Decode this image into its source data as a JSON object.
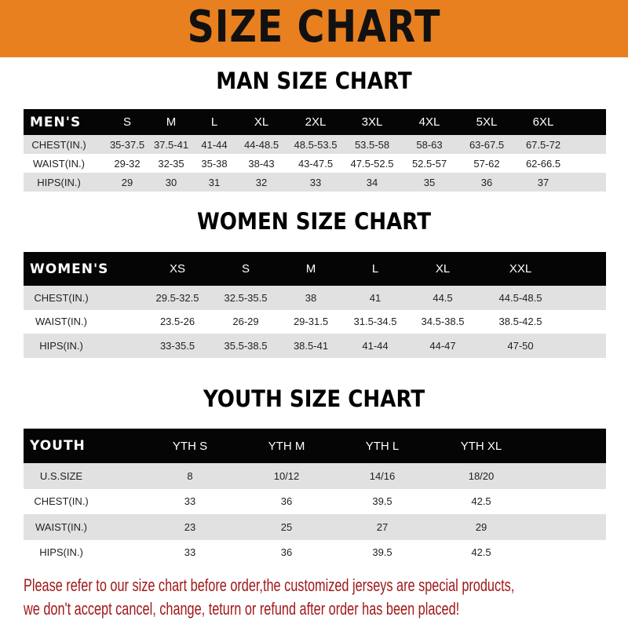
{
  "banner": {
    "title": "SIZE CHART",
    "color": "#e8801f"
  },
  "tables": [
    {
      "key": "men",
      "title": "MAN SIZE CHART",
      "header": [
        "MEN'S",
        "S",
        "M",
        "L",
        "XL",
        "2XL",
        "3XL",
        "4XL",
        "5XL",
        "6XL"
      ],
      "rows": [
        [
          "CHEST(IN.)",
          "35-37.5",
          "37.5-41",
          "41-44",
          "44-48.5",
          "48.5-53.5",
          "53.5-58",
          "58-63",
          "63-67.5",
          "67.5-72"
        ],
        [
          "WAIST(IN.)",
          "29-32",
          "32-35",
          "35-38",
          "38-43",
          "43-47.5",
          "47.5-52.5",
          "52.5-57",
          "57-62",
          "62-66.5"
        ],
        [
          "HIPS(IN.)",
          "29",
          "30",
          "31",
          "32",
          "33",
          "34",
          "35",
          "36",
          "37"
        ]
      ]
    },
    {
      "key": "women",
      "title": "WOMEN SIZE CHART",
      "header": [
        "WOMEN'S",
        "XS",
        "S",
        "M",
        "L",
        "XL",
        "XXL"
      ],
      "rows": [
        [
          "CHEST(IN.)",
          "29.5-32.5",
          "32.5-35.5",
          "38",
          "41",
          "44.5",
          "44.5-48.5"
        ],
        [
          "WAIST(IN.)",
          "23.5-26",
          "26-29",
          "29-31.5",
          "31.5-34.5",
          "34.5-38.5",
          "38.5-42.5"
        ],
        [
          "HIPS(IN.)",
          "33-35.5",
          "35.5-38.5",
          "38.5-41",
          "41-44",
          "44-47",
          "47-50"
        ]
      ]
    },
    {
      "key": "youth",
      "title": "YOUTH SIZE CHART",
      "header": [
        "YOUTH",
        "YTH S",
        "YTH M",
        "YTH L",
        "YTH XL"
      ],
      "rows": [
        [
          "U.S.SIZE",
          "8",
          "10/12",
          "14/16",
          "18/20"
        ],
        [
          "CHEST(IN.)",
          "33",
          "36",
          "39.5",
          "42.5"
        ],
        [
          "WAIST(IN.)",
          "23",
          "25",
          "27",
          "29"
        ],
        [
          "HIPS(IN.)",
          "33",
          "36",
          "39.5",
          "42.5"
        ]
      ]
    }
  ],
  "footer": {
    "line1": "Please refer to our size chart before order,the customized jerseys are special products,",
    "line2": "we don't accept cancel, change, teturn or refund after order has been placed!",
    "color": "#a01818"
  }
}
